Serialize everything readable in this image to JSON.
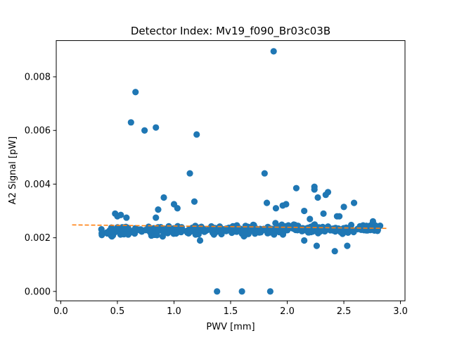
{
  "chart_data": {
    "type": "scatter",
    "title": "Detector Index: Mv19_f090_Br03c03B",
    "xlabel": "PWV [mm]",
    "ylabel": "A2 Signal [pW]",
    "xlim": [
      -0.04,
      3.04
    ],
    "ylim": [
      -0.00035,
      0.00935
    ],
    "xticks": [
      0.0,
      0.5,
      1.0,
      1.5,
      2.0,
      2.5,
      3.0
    ],
    "xtick_labels": [
      "0.0",
      "0.5",
      "1.0",
      "1.5",
      "2.0",
      "2.5",
      "3.0"
    ],
    "yticks": [
      0.0,
      0.002,
      0.004,
      0.006,
      0.008
    ],
    "ytick_labels": [
      "0.000",
      "0.002",
      "0.004",
      "0.006",
      "0.008"
    ],
    "colors": {
      "points": "#1f77b4",
      "fit": "#ff7f0e"
    },
    "fit_line": {
      "style": "dashed",
      "x": [
        0.1,
        2.88
      ],
      "y": [
        0.00248,
        0.00235
      ]
    },
    "outliers": [
      [
        0.62,
        0.0063
      ],
      [
        0.66,
        0.00743
      ],
      [
        0.74,
        0.006
      ],
      [
        0.84,
        0.00611
      ],
      [
        1.2,
        0.00585
      ],
      [
        1.88,
        0.00895
      ],
      [
        1.14,
        0.0044
      ],
      [
        1.8,
        0.0044
      ],
      [
        1.38,
        0.0
      ],
      [
        1.6,
        0.0
      ],
      [
        1.85,
        0.0
      ],
      [
        0.48,
        0.0029
      ],
      [
        0.5,
        0.0028
      ],
      [
        0.53,
        0.00285
      ],
      [
        0.58,
        0.00275
      ],
      [
        0.84,
        0.00275
      ],
      [
        0.86,
        0.00305
      ],
      [
        0.91,
        0.0035
      ],
      [
        1.0,
        0.00325
      ],
      [
        1.03,
        0.0031
      ],
      [
        1.18,
        0.00335
      ],
      [
        1.82,
        0.0033
      ],
      [
        1.9,
        0.0031
      ],
      [
        1.96,
        0.0032
      ],
      [
        1.99,
        0.00325
      ],
      [
        2.08,
        0.00385
      ],
      [
        2.24,
        0.0039
      ],
      [
        2.24,
        0.0038
      ],
      [
        2.27,
        0.0035
      ],
      [
        2.34,
        0.0036
      ],
      [
        2.36,
        0.0037
      ],
      [
        2.15,
        0.003
      ],
      [
        2.44,
        0.0028
      ],
      [
        2.5,
        0.00315
      ],
      [
        2.59,
        0.0033
      ],
      [
        2.26,
        0.0017
      ],
      [
        2.42,
        0.0015
      ],
      [
        2.46,
        0.0028
      ],
      [
        2.53,
        0.0017
      ],
      [
        2.15,
        0.0019
      ],
      [
        2.2,
        0.0027
      ],
      [
        2.32,
        0.0029
      ],
      [
        1.23,
        0.0019
      ],
      [
        0.9,
        0.00205
      ],
      [
        0.85,
        0.0021
      ],
      [
        0.78,
        0.00225
      ]
    ],
    "cluster": {
      "x_range": [
        0.35,
        2.82
      ],
      "center_start": 0.00225,
      "center_end": 0.00235,
      "spread": 0.0002,
      "count": 320,
      "seed": 19
    }
  }
}
